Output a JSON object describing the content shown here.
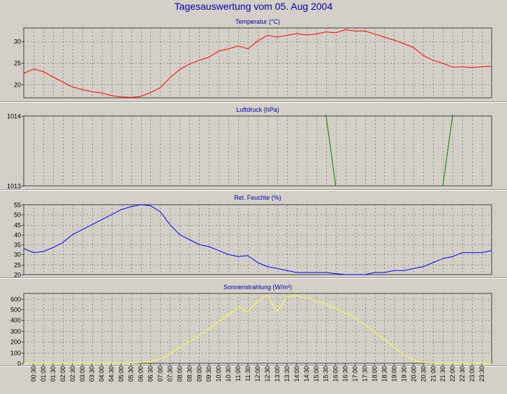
{
  "title": "Tagesauswertung vom 05. Aug 2004",
  "time_labels": [
    "00:30",
    "01:00",
    "01:30",
    "02:00",
    "02:30",
    "03:00",
    "03:30",
    "04:00",
    "04:30",
    "05:00",
    "05:30",
    "06:00",
    "06:30",
    "07:00",
    "07:30",
    "08:00",
    "08:30",
    "09:00",
    "09:30",
    "10:00",
    "10:30",
    "11:00",
    "11:30",
    "12:00",
    "12:30",
    "13:00",
    "13:30",
    "14:00",
    "14:30",
    "15:00",
    "15:30",
    "16:00",
    "16:30",
    "17:00",
    "17:30",
    "18:00",
    "18:30",
    "19:00",
    "19:30",
    "20:00",
    "20:30",
    "21:00",
    "21:30",
    "22:00",
    "22:30",
    "23:00",
    "23:30"
  ],
  "colors": {
    "background": "#d4d0c8",
    "plot_background": "#d4d0c8",
    "grid": "#606060",
    "title": "#0000b0",
    "temperature": "#ff0000",
    "pressure": "#008000",
    "humidity": "#0000ff",
    "radiation": "#ffff40"
  },
  "chart_data": [
    {
      "type": "line",
      "title": "Temperatur (°C)",
      "ylim": [
        17,
        33
      ],
      "yticks": [
        20,
        25,
        30
      ],
      "grid": true,
      "series": [
        {
          "color": "#ff0000",
          "points": [
            [
              "00:00",
              22.6
            ],
            [
              "00:30",
              23.6
            ],
            [
              "01:00",
              23.0
            ],
            [
              "01:30",
              21.8
            ],
            [
              "02:00",
              20.6
            ],
            [
              "02:30",
              19.5
            ],
            [
              "03:00",
              18.9
            ],
            [
              "03:30",
              18.4
            ],
            [
              "04:00",
              18.1
            ],
            [
              "04:30",
              17.5
            ],
            [
              "05:00",
              17.2
            ],
            [
              "05:30",
              17.1
            ],
            [
              "06:00",
              17.3
            ],
            [
              "06:30",
              18.2
            ],
            [
              "07:00",
              19.3
            ],
            [
              "07:30",
              21.6
            ],
            [
              "08:00",
              23.5
            ],
            [
              "08:30",
              24.7
            ],
            [
              "09:00",
              25.6
            ],
            [
              "09:30",
              26.3
            ],
            [
              "10:00",
              27.7
            ],
            [
              "10:30",
              28.2
            ],
            [
              "11:00",
              28.9
            ],
            [
              "11:30",
              28.2
            ],
            [
              "12:00",
              30.0
            ],
            [
              "12:30",
              31.3
            ],
            [
              "13:00",
              30.9
            ],
            [
              "13:30",
              31.3
            ],
            [
              "14:00",
              31.7
            ],
            [
              "14:30",
              31.4
            ],
            [
              "15:00",
              31.6
            ],
            [
              "15:30",
              32.1
            ],
            [
              "16:00",
              31.9
            ],
            [
              "16:30",
              32.6
            ],
            [
              "17:00",
              32.3
            ],
            [
              "17:30",
              32.3
            ],
            [
              "18:00",
              31.6
            ],
            [
              "18:30",
              30.9
            ],
            [
              "19:00",
              30.2
            ],
            [
              "19:30",
              29.4
            ],
            [
              "20:00",
              28.5
            ],
            [
              "20:30",
              26.7
            ],
            [
              "21:00",
              25.6
            ],
            [
              "21:30",
              24.9
            ],
            [
              "22:00",
              24.0
            ],
            [
              "22:30",
              24.1
            ],
            [
              "23:00",
              23.9
            ],
            [
              "23:30",
              24.1
            ],
            [
              "23:59",
              24.2
            ]
          ]
        }
      ]
    },
    {
      "type": "line",
      "title": "Luftdruck (hPa)",
      "ylim": [
        1013,
        1014
      ],
      "yticks": [
        1013,
        1014
      ],
      "grid": true,
      "series": [
        {
          "color": "#008000",
          "segments": [
            [
              [
                "15:30",
                1014.03
              ],
              [
                "16:00",
                1013.0
              ]
            ],
            [
              [
                "21:30",
                1013.0
              ],
              [
                "22:00",
                1014.03
              ]
            ]
          ]
        }
      ]
    },
    {
      "type": "line",
      "title": "Rel. Feuchte (%)",
      "ylim": [
        20,
        55
      ],
      "yticks": [
        20,
        25,
        30,
        35,
        40,
        45,
        50,
        55
      ],
      "grid": true,
      "series": [
        {
          "color": "#0000ff",
          "points": [
            [
              "00:00",
              33.0
            ],
            [
              "00:30",
              31.0
            ],
            [
              "01:00",
              31.5
            ],
            [
              "01:30",
              33.5
            ],
            [
              "02:00",
              36.0
            ],
            [
              "02:30",
              40.0
            ],
            [
              "03:00",
              42.5
            ],
            [
              "03:30",
              45.0
            ],
            [
              "04:00",
              47.5
            ],
            [
              "04:30",
              50.0
            ],
            [
              "05:00",
              52.5
            ],
            [
              "05:30",
              54.0
            ],
            [
              "06:00",
              55.0
            ],
            [
              "06:30",
              54.5
            ],
            [
              "07:00",
              51.5
            ],
            [
              "07:30",
              45.0
            ],
            [
              "08:00",
              40.0
            ],
            [
              "08:30",
              37.5
            ],
            [
              "09:00",
              35.0
            ],
            [
              "09:30",
              34.0
            ],
            [
              "10:00",
              32.0
            ],
            [
              "10:30",
              30.0
            ],
            [
              "11:00",
              29.0
            ],
            [
              "11:30",
              29.5
            ],
            [
              "12:00",
              26.0
            ],
            [
              "12:30",
              24.0
            ],
            [
              "13:00",
              23.0
            ],
            [
              "13:30",
              22.0
            ],
            [
              "14:00",
              21.0
            ],
            [
              "14:30",
              21.0
            ],
            [
              "15:00",
              21.0
            ],
            [
              "15:30",
              21.0
            ],
            [
              "16:00",
              20.5
            ],
            [
              "16:30",
              20.0
            ],
            [
              "17:00",
              20.0
            ],
            [
              "17:30",
              20.0
            ],
            [
              "18:00",
              21.0
            ],
            [
              "18:30",
              21.0
            ],
            [
              "19:00",
              22.0
            ],
            [
              "19:30",
              22.0
            ],
            [
              "20:00",
              23.0
            ],
            [
              "20:30",
              24.0
            ],
            [
              "21:00",
              26.0
            ],
            [
              "21:30",
              28.0
            ],
            [
              "22:00",
              29.0
            ],
            [
              "22:30",
              31.0
            ],
            [
              "23:00",
              31.0
            ],
            [
              "23:30",
              31.0
            ],
            [
              "23:59",
              32.0
            ]
          ]
        }
      ]
    },
    {
      "type": "line",
      "title": "Sonnenstrahlung (W/m²)",
      "ylim": [
        0,
        650
      ],
      "yticks": [
        0,
        100,
        200,
        300,
        400,
        500,
        600
      ],
      "grid": true,
      "series": [
        {
          "color": "#ffff40",
          "points": [
            [
              "00:00",
              0
            ],
            [
              "05:30",
              0
            ],
            [
              "06:00",
              5
            ],
            [
              "06:30",
              15
            ],
            [
              "07:00",
              40
            ],
            [
              "07:30",
              90
            ],
            [
              "08:00",
              150
            ],
            [
              "08:30",
              200
            ],
            [
              "09:00",
              260
            ],
            [
              "09:30",
              320
            ],
            [
              "10:00",
              390
            ],
            [
              "10:30",
              450
            ],
            [
              "11:00",
              520
            ],
            [
              "11:30",
              480
            ],
            [
              "12:00",
              580
            ],
            [
              "12:30",
              630
            ],
            [
              "13:00",
              480
            ],
            [
              "13:30",
              620
            ],
            [
              "14:00",
              630
            ],
            [
              "14:30",
              610
            ],
            [
              "15:00",
              580
            ],
            [
              "15:30",
              550
            ],
            [
              "16:00",
              510
            ],
            [
              "16:30",
              470
            ],
            [
              "17:00",
              420
            ],
            [
              "17:30",
              360
            ],
            [
              "18:00",
              290
            ],
            [
              "18:30",
              220
            ],
            [
              "19:00",
              150
            ],
            [
              "19:30",
              80
            ],
            [
              "20:00",
              30
            ],
            [
              "20:30",
              5
            ],
            [
              "21:00",
              0
            ],
            [
              "23:59",
              0
            ]
          ]
        }
      ]
    }
  ]
}
